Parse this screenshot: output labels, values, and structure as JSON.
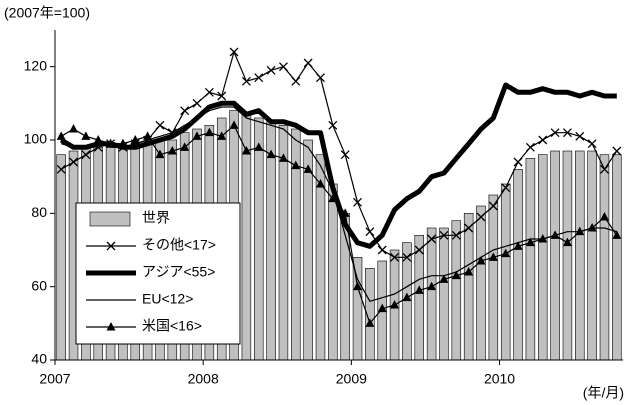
{
  "chart_data": {
    "type": "combo",
    "ylabel": "(2007年=100)",
    "xlabel": "(年/月)",
    "categories": [
      "2007",
      null,
      null,
      null,
      null,
      null,
      null,
      null,
      null,
      null,
      null,
      null,
      "2008",
      null,
      null,
      null,
      null,
      null,
      null,
      null,
      null,
      null,
      null,
      null,
      "2009",
      null,
      null,
      null,
      null,
      null,
      null,
      null,
      null,
      null,
      null,
      null,
      "2010",
      null,
      null,
      null,
      null,
      null,
      null,
      null,
      null,
      null
    ],
    "ylim": [
      40,
      130
    ],
    "yticks": [
      40,
      60,
      80,
      100,
      120
    ],
    "legend": "lower-left",
    "series": [
      {
        "name": "世界",
        "type": "bar",
        "color": "#c0c0c0",
        "values": [
          96,
          97,
          98,
          98,
          98,
          98,
          99,
          99,
          100,
          100,
          102,
          103,
          104,
          106,
          108,
          107,
          106,
          105,
          104,
          103,
          100,
          96,
          88,
          80,
          68,
          65,
          67,
          70,
          72,
          74,
          76,
          76,
          78,
          80,
          82,
          85,
          88,
          92,
          95,
          96,
          97,
          97,
          97,
          97,
          96,
          96
        ]
      },
      {
        "name": "その他<17>",
        "type": "line",
        "color": "#000000",
        "width": 1.2,
        "marker": "x",
        "values": [
          92,
          94,
          96,
          98,
          99,
          98,
          99,
          100,
          104,
          102,
          108,
          110,
          113,
          112,
          124,
          116,
          117,
          119,
          120,
          116,
          121,
          117,
          104,
          96,
          83,
          75,
          70,
          68,
          68,
          70,
          73,
          74,
          74,
          76,
          79,
          82,
          87,
          94,
          98,
          100,
          102,
          102,
          101,
          99,
          92,
          97
        ]
      },
      {
        "name": "アジア<55>",
        "type": "line",
        "color": "#000000",
        "width": 5,
        "marker": null,
        "values": [
          100,
          98,
          98,
          99,
          99,
          98,
          98,
          99,
          100,
          101,
          103,
          106,
          109,
          110,
          110,
          107,
          108,
          105,
          105,
          104,
          102,
          102,
          87,
          77,
          72,
          71,
          74,
          81,
          84,
          86,
          90,
          91,
          95,
          99,
          103,
          106,
          115,
          113,
          113,
          114,
          113,
          113,
          112,
          113,
          112,
          112
        ]
      },
      {
        "name": "EU<12>",
        "type": "line",
        "color": "#000000",
        "width": 1.2,
        "marker": null,
        "values": [
          99,
          98,
          98,
          99,
          98,
          98,
          99,
          100,
          101,
          102,
          104,
          106,
          108,
          109,
          109,
          106,
          105,
          104,
          103,
          100,
          98,
          93,
          86,
          74,
          62,
          56,
          57,
          58,
          60,
          62,
          63,
          63,
          64,
          66,
          68,
          70,
          71,
          72,
          73,
          73,
          74,
          75,
          75,
          76,
          76,
          75
        ]
      },
      {
        "name": "米国<16>",
        "type": "line",
        "color": "#000000",
        "width": 1.2,
        "marker": "triangle",
        "values": [
          101,
          103,
          101,
          100,
          99,
          99,
          100,
          101,
          96,
          97,
          98,
          101,
          102,
          101,
          104,
          97,
          98,
          96,
          95,
          93,
          92,
          88,
          84,
          80,
          60,
          50,
          54,
          55,
          57,
          59,
          60,
          62,
          63,
          64,
          67,
          68,
          69,
          71,
          72,
          73,
          74,
          72,
          75,
          76,
          79,
          74
        ]
      }
    ]
  }
}
